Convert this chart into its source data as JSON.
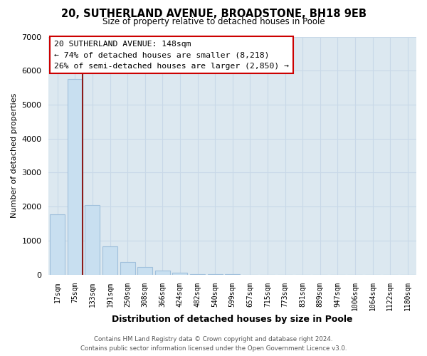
{
  "title_line1": "20, SUTHERLAND AVENUE, BROADSTONE, BH18 9EB",
  "title_line2": "Size of property relative to detached houses in Poole",
  "xlabel": "Distribution of detached houses by size in Poole",
  "ylabel": "Number of detached properties",
  "bar_labels": [
    "17sqm",
    "75sqm",
    "133sqm",
    "191sqm",
    "250sqm",
    "308sqm",
    "366sqm",
    "424sqm",
    "482sqm",
    "540sqm",
    "599sqm",
    "657sqm",
    "715sqm",
    "773sqm",
    "831sqm",
    "889sqm",
    "947sqm",
    "1006sqm",
    "1064sqm",
    "1122sqm",
    "1180sqm"
  ],
  "bar_values": [
    1780,
    5750,
    2050,
    830,
    370,
    230,
    110,
    50,
    20,
    8,
    5,
    0,
    0,
    0,
    0,
    0,
    0,
    0,
    0,
    0,
    0
  ],
  "bar_color": "#c8dff0",
  "bar_edge_color": "#a0c0dc",
  "grid_color": "#c8d8e8",
  "vline_x_idx": 1,
  "vline_color": "#8b1a1a",
  "ylim": [
    0,
    7000
  ],
  "yticks": [
    0,
    1000,
    2000,
    3000,
    4000,
    5000,
    6000,
    7000
  ],
  "annotation_title": "20 SUTHERLAND AVENUE: 148sqm",
  "annotation_line2": "← 74% of detached houses are smaller (8,218)",
  "annotation_line3": "26% of semi-detached houses are larger (2,850) →",
  "annotation_box_color": "white",
  "annotation_box_edge": "#cc0000",
  "footer_line1": "Contains HM Land Registry data © Crown copyright and database right 2024.",
  "footer_line2": "Contains public sector information licensed under the Open Government Licence v3.0.",
  "background_color": "white",
  "plot_bg_color": "#dce8f0"
}
